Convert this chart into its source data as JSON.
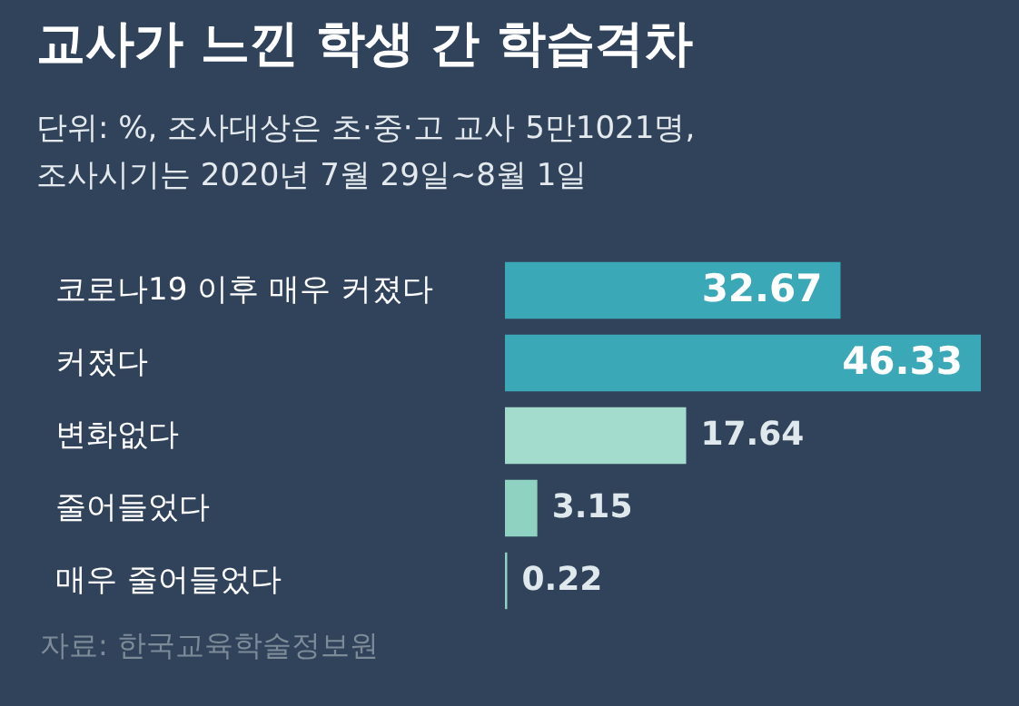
{
  "chart_data": {
    "type": "bar",
    "orientation": "horizontal",
    "title": "교사가 느낀 학생 간 학습격차",
    "subtitle": "단위: %, 조사대상은 초·중·고 교사 5만1021명,\n조사시기는 2020년 7월 29일~8월 1일",
    "categories": [
      "코로나19 이후 매우 커졌다",
      "커졌다",
      "변화없다",
      "줄어들었다",
      "매우  줄어들었다"
    ],
    "values": [
      32.67,
      46.33,
      17.64,
      3.15,
      0.22
    ],
    "colors": [
      "#3ba8b7",
      "#3ba8b7",
      "#a3dccd",
      "#8fd2c1",
      "#8fd2c1"
    ],
    "data_labels": true,
    "annotations": [
      "자료: 한국교육학술정보원"
    ]
  }
}
